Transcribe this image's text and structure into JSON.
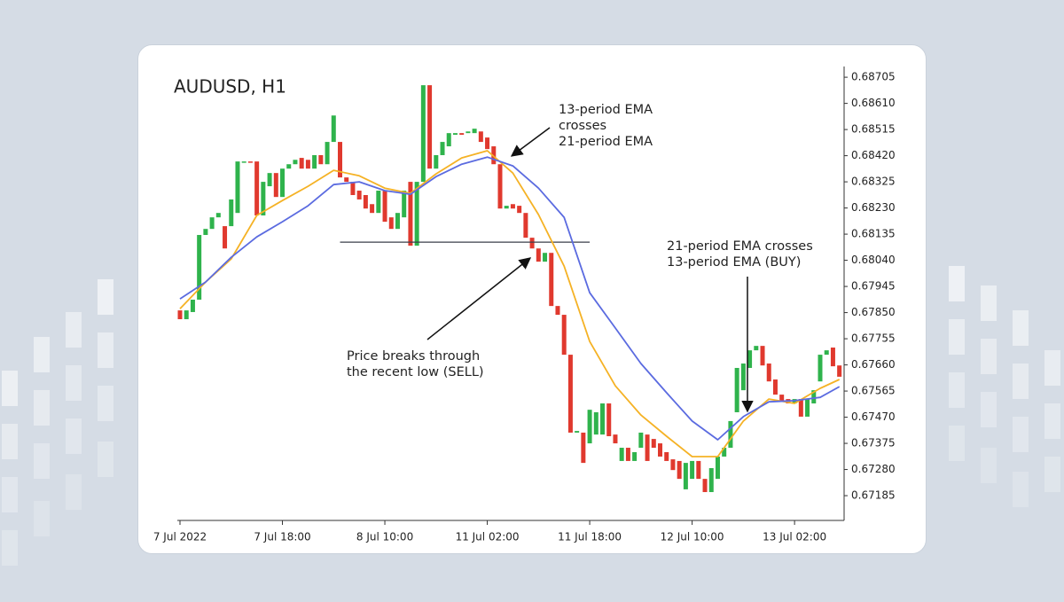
{
  "chart_data": {
    "type": "candlestick",
    "title": "AUDUSD, H1",
    "categories": [
      "7 Jul 2022",
      null,
      null,
      null,
      null,
      null,
      null,
      null,
      null,
      null,
      null,
      null,
      null,
      null,
      null,
      null,
      "7 Jul 18:00",
      null,
      null,
      null,
      null,
      null,
      null,
      null,
      null,
      null,
      null,
      null,
      null,
      null,
      null,
      null,
      "8 Jul 10:00",
      null,
      null,
      null,
      null,
      null,
      null,
      null,
      null,
      null,
      null,
      null,
      null,
      null,
      null,
      null,
      "11 Jul 02:00",
      null,
      null,
      null,
      null,
      null,
      null,
      null,
      null,
      null,
      null,
      null,
      null,
      null,
      null,
      null,
      "11 Jul 18:00",
      null,
      null,
      null,
      null,
      null,
      null,
      null,
      null,
      null,
      null,
      null,
      null,
      null,
      null,
      null,
      "12 Jul 10:00",
      null,
      null,
      null,
      null,
      null,
      null,
      null,
      null,
      null,
      null,
      null,
      null,
      null,
      null,
      null,
      "13 Jul 02:00",
      null,
      null,
      null,
      null,
      null,
      null,
      null
    ],
    "open": [
      0.67858,
      0.67826,
      0.67852,
      0.67897,
      0.68132,
      0.68154,
      0.68196,
      0.68164,
      0.68164,
      0.68212,
      0.68396,
      0.68399,
      0.68399,
      0.68203,
      0.68309,
      0.68357,
      0.6827,
      0.68373,
      0.68389,
      0.68412,
      0.68405,
      0.68373,
      0.68422,
      0.68389,
      0.6847,
      0.6847,
      0.68341,
      0.68325,
      0.68293,
      0.68277,
      0.68244,
      0.68212,
      0.68293,
      0.68196,
      0.68154,
      0.68196,
      0.68325,
      0.68093,
      0.68325,
      0.68676,
      0.68373,
      0.68422,
      0.68454,
      0.68496,
      0.68502,
      0.68502,
      0.68502,
      0.68508,
      0.68486,
      0.68454,
      0.68389,
      0.68228,
      0.68244,
      0.68238,
      0.68212,
      0.68122,
      0.68083,
      0.68035,
      0.68067,
      0.67874,
      0.67842,
      0.67697,
      0.67414,
      0.67414,
      0.67375,
      0.67407,
      0.67407,
      0.6752,
      0.67407,
      0.67311,
      0.67359,
      0.67311,
      0.67359,
      0.67407,
      0.67391,
      0.67375,
      0.67343,
      0.67317,
      0.67311,
      0.67208,
      0.67246,
      0.67311,
      0.67246,
      0.67198,
      0.67246,
      0.67327,
      0.67359,
      0.67488,
      0.67568,
      0.67649,
      0.67713,
      0.67729,
      0.67665,
      0.67607,
      0.67552,
      0.67536,
      0.6752,
      0.67536,
      0.67472,
      0.6752,
      0.676,
      0.67697,
      0.67723,
      0.67658
    ],
    "close": [
      0.67826,
      0.67858,
      0.67897,
      0.68132,
      0.68154,
      0.68196,
      0.68212,
      0.68083,
      0.68261,
      0.68399,
      0.68399,
      0.68396,
      0.68203,
      0.68325,
      0.68357,
      0.6827,
      0.68373,
      0.68389,
      0.68405,
      0.68373,
      0.68373,
      0.68422,
      0.68389,
      0.6847,
      0.68566,
      0.68341,
      0.68325,
      0.68277,
      0.68261,
      0.68228,
      0.68212,
      0.68293,
      0.6818,
      0.68154,
      0.68212,
      0.68293,
      0.68093,
      0.68325,
      0.68676,
      0.68373,
      0.68422,
      0.6847,
      0.68502,
      0.68502,
      0.68496,
      0.68508,
      0.68518,
      0.6847,
      0.68444,
      0.68389,
      0.68228,
      0.68238,
      0.68228,
      0.68212,
      0.68122,
      0.68083,
      0.68035,
      0.68067,
      0.67874,
      0.67842,
      0.67697,
      0.67414,
      0.6742,
      0.67304,
      0.67497,
      0.67488,
      0.6752,
      0.67401,
      0.67375,
      0.67359,
      0.67311,
      0.67343,
      0.67414,
      0.67311,
      0.67359,
      0.67327,
      0.67311,
      0.67278,
      0.67246,
      0.67304,
      0.67311,
      0.67246,
      0.67198,
      0.67285,
      0.67327,
      0.67359,
      0.67456,
      0.67649,
      0.67665,
      0.67713,
      0.67729,
      0.67658,
      0.676,
      0.67552,
      0.6753,
      0.6752,
      0.67536,
      0.67472,
      0.67536,
      0.67568,
      0.67697,
      0.67713,
      0.67655,
      0.67617
    ],
    "up_color": "#2fb34c",
    "down_color": "#e0392e",
    "series": [
      {
        "type": "line",
        "color": "#f5b225",
        "x": [
          0,
          4,
          8,
          12,
          16,
          20,
          24,
          28,
          32,
          36,
          40,
          44,
          48,
          52,
          56,
          60,
          64,
          68,
          72,
          76,
          80,
          84,
          88,
          92,
          96,
          100,
          103
        ],
        "values": [
          0.67864,
          0.67961,
          0.68045,
          0.68203,
          0.68257,
          0.68309,
          0.68367,
          0.68347,
          0.68302,
          0.68283,
          0.68354,
          0.68412,
          0.68438,
          0.68357,
          0.68206,
          0.68019,
          0.67745,
          0.67584,
          0.67478,
          0.67401,
          0.67327,
          0.67327,
          0.67456,
          0.67536,
          0.6752,
          0.67575,
          0.67607
        ]
      },
      {
        "type": "line",
        "color": "#5b6be0",
        "x": [
          0,
          4,
          8,
          12,
          16,
          20,
          24,
          28,
          32,
          36,
          40,
          44,
          48,
          52,
          56,
          60,
          64,
          68,
          72,
          76,
          80,
          84,
          88,
          92,
          96,
          100,
          103
        ],
        "values": [
          0.679,
          0.67961,
          0.68051,
          0.68125,
          0.6818,
          0.68238,
          0.68315,
          0.68325,
          0.68293,
          0.6828,
          0.68344,
          0.68389,
          0.68415,
          0.68383,
          0.68302,
          0.68196,
          0.67922,
          0.67794,
          0.67665,
          0.67559,
          0.67456,
          0.67388,
          0.67472,
          0.67526,
          0.6753,
          0.67542,
          0.67581
        ]
      }
    ],
    "hline": {
      "value": 0.68106,
      "from": 25,
      "to": 64,
      "color": "#3a3f4a"
    },
    "annotations": [
      [
        "13-period EMA",
        "crosses",
        "21-period EMA"
      ],
      [
        "Price breaks through",
        "the recent low (SELL)"
      ],
      [
        "21-period EMA crosses",
        "13-period EMA (BUY)"
      ]
    ],
    "ylim": [
      0.67095,
      0.68744
    ],
    "yticks": [
      0.68705,
      {
        "value": 0.6861,
        "label": "0.68610"
      },
      0.68515,
      {
        "value": 0.6842,
        "label": "0.68420"
      },
      0.68325,
      {
        "value": 0.6823,
        "label": "0.68230"
      },
      0.68135,
      {
        "value": 0.6804,
        "label": "0.68040"
      },
      0.67945,
      {
        "value": 0.6785,
        "label": "0.67850"
      },
      0.67755,
      {
        "value": 0.6766,
        "label": "0.67660"
      },
      0.67565,
      {
        "value": 0.6747,
        "label": "0.67470"
      },
      0.67375,
      {
        "value": 0.6728,
        "label": "0.67280"
      },
      0.67185
    ]
  }
}
